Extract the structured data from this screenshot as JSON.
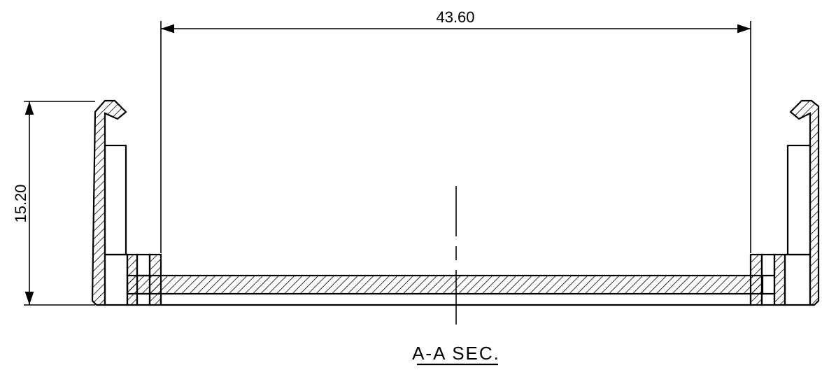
{
  "dimensions": {
    "width_label": "43.60",
    "height_label": "15.20"
  },
  "section_title": "A-A SEC.",
  "colors": {
    "line": "#000000",
    "background": "#ffffff"
  }
}
